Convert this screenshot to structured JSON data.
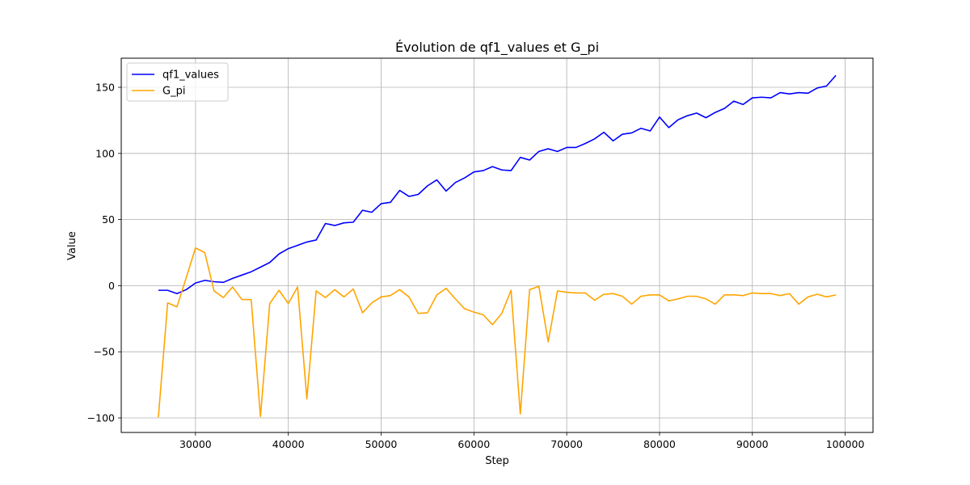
{
  "chart_data": {
    "type": "line",
    "title": "Évolution de qf1_values et G_pi",
    "xlabel": "Step",
    "ylabel": "Value",
    "xlim": [
      22000,
      103000
    ],
    "ylim": [
      -111,
      172
    ],
    "xticks": [
      30000,
      40000,
      50000,
      60000,
      70000,
      80000,
      90000,
      100000
    ],
    "yticks": [
      -100,
      -50,
      0,
      50,
      100,
      150
    ],
    "grid": true,
    "legend_position": "top-left",
    "x": [
      26000,
      27000,
      28000,
      29000,
      30000,
      31000,
      32000,
      33000,
      34000,
      35000,
      36000,
      37000,
      38000,
      39000,
      40000,
      41000,
      42000,
      43000,
      44000,
      45000,
      46000,
      47000,
      48000,
      49000,
      50000,
      51000,
      52000,
      53000,
      54000,
      55000,
      56000,
      57000,
      58000,
      59000,
      60000,
      61000,
      62000,
      63000,
      64000,
      65000,
      66000,
      67000,
      68000,
      69000,
      70000,
      71000,
      72000,
      73000,
      74000,
      75000,
      76000,
      77000,
      78000,
      79000,
      80000,
      81000,
      82000,
      83000,
      84000,
      85000,
      86000,
      87000,
      88000,
      89000,
      90000,
      91000,
      92000,
      93000,
      94000,
      95000,
      96000,
      97000,
      98000,
      99000
    ],
    "series": [
      {
        "name": "qf1_values",
        "color": "#0000ff",
        "values": [
          -3.5,
          -3.5,
          -6,
          -3,
          2,
          4,
          3,
          2.5,
          5.5,
          8,
          10.5,
          14,
          17.5,
          24,
          28,
          30.5,
          33,
          34.5,
          47,
          45.5,
          47.5,
          48,
          57,
          55.5,
          62,
          63,
          72,
          67.5,
          69,
          75.5,
          80,
          71.5,
          78,
          81.5,
          86,
          87,
          90,
          87.5,
          87,
          97,
          95,
          101.5,
          103.5,
          101.5,
          104.5,
          104.5,
          107.5,
          111,
          116,
          109.5,
          114.5,
          115.5,
          119,
          117,
          127.5,
          119.5,
          125.5,
          128.5,
          130.5,
          127,
          131,
          134,
          139.5,
          137,
          142,
          142.5,
          142,
          146,
          145,
          146,
          145.5,
          149.5,
          151,
          159
        ]
      },
      {
        "name": "G_pi",
        "color": "#ffa500",
        "values": [
          -99.5,
          -13,
          -16,
          6,
          28.5,
          25,
          -4,
          -9,
          -1,
          -10.5,
          -10.5,
          -99,
          -13.5,
          -3.5,
          -13.5,
          -1,
          -85.5,
          -4,
          -9,
          -3,
          -8.5,
          -2.5,
          -20.5,
          -13,
          -8.5,
          -7.5,
          -3,
          -8.5,
          -21,
          -20.5,
          -7,
          -2,
          -10,
          -17.5,
          -20,
          -22,
          -29.5,
          -21,
          -3.5,
          -97,
          -3,
          -0.5,
          -42.5,
          -4,
          -5,
          -5.5,
          -5.5,
          -11,
          -6.5,
          -6,
          -8,
          -14,
          -8,
          -7,
          -7,
          -11.5,
          -10,
          -8,
          -8,
          -10,
          -14,
          -7,
          -7,
          -7.5,
          -5.5,
          -6,
          -6,
          -7.5,
          -6,
          -14,
          -8.5,
          -6.5,
          -8.5,
          -7
        ]
      }
    ]
  }
}
